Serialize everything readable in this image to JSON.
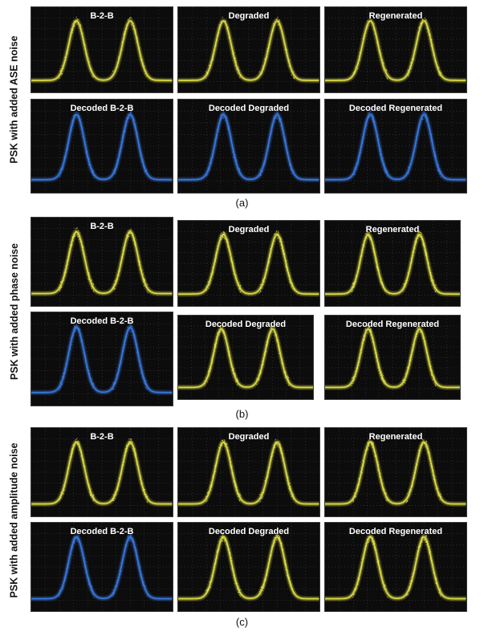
{
  "colors": {
    "yellow": "#e6e64a",
    "blue": "#3d7de8",
    "screen": "#0c0c0c",
    "grid": "#4a4a4a"
  },
  "sections": [
    {
      "side_label": "PSK with added ASE noise",
      "caption": "(a)",
      "panels": [
        {
          "title": "B-2-B",
          "color": "yellow"
        },
        {
          "title": "Degraded",
          "color": "yellow"
        },
        {
          "title": "Regenerated",
          "color": "yellow"
        },
        {
          "title": "Decoded B-2-B",
          "color": "blue"
        },
        {
          "title": "Decoded Degraded",
          "color": "blue"
        },
        {
          "title": "Decoded Regenerated",
          "color": "blue"
        }
      ]
    },
    {
      "side_label": "PSK with added phase noise",
      "caption": "(b)",
      "panels": [
        {
          "title": "B-2-B",
          "color": "yellow"
        },
        {
          "title": "Degraded",
          "color": "yellow"
        },
        {
          "title": "Regenerated",
          "color": "yellow"
        },
        {
          "title": "Decoded B-2-B",
          "color": "blue"
        },
        {
          "title": "Decoded Degraded",
          "color": "yellow"
        },
        {
          "title": "Decoded Regenerated",
          "color": "yellow"
        }
      ]
    },
    {
      "side_label": "PSK with added amplitude noise",
      "caption": "(c)",
      "panels": [
        {
          "title": "B-2-B",
          "color": "yellow"
        },
        {
          "title": "Degraded",
          "color": "yellow"
        },
        {
          "title": "Regenerated",
          "color": "yellow"
        },
        {
          "title": "Decoded B-2-B",
          "color": "blue"
        },
        {
          "title": "Decoded Degraded",
          "color": "yellow"
        },
        {
          "title": "Decoded Regenerated",
          "color": "yellow"
        }
      ]
    }
  ]
}
